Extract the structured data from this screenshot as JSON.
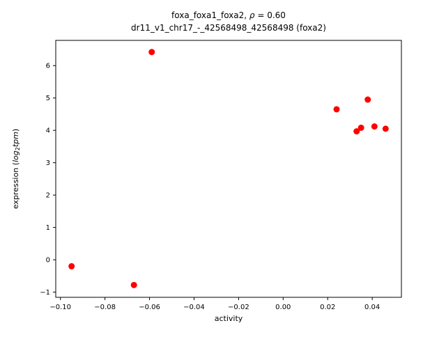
{
  "chart_data": {
    "type": "scatter",
    "title_line1": {
      "pre": "foxa_foxa1_foxa2, ",
      "rho": "ρ",
      "post": " = 0.60"
    },
    "title_line2": "dr11_v1_chr17_-_42568498_42568498 (foxa2)",
    "xlabel": "activity",
    "ylabel": {
      "prefix": "expression (",
      "log": "log",
      "sub": "2",
      "word": "tpm",
      "suffix": ")"
    },
    "marker_color": "#ff0000",
    "axis_color": "#000000",
    "xlim": [
      -0.1021,
      0.0531
    ],
    "ylim": [
      -1.16,
      6.78
    ],
    "x_ticks": [
      -0.1,
      -0.08,
      -0.06,
      -0.04,
      -0.02,
      0.0,
      0.02,
      0.04
    ],
    "x_tick_labels": [
      "−0.10",
      "−0.08",
      "−0.06",
      "−0.04",
      "−0.02",
      "0.00",
      "0.02",
      "0.04"
    ],
    "y_ticks": [
      -1,
      0,
      1,
      2,
      3,
      4,
      5,
      6
    ],
    "y_tick_labels": [
      "−1",
      "0",
      "1",
      "2",
      "3",
      "4",
      "5",
      "6"
    ],
    "points": [
      {
        "x": -0.095,
        "y": -0.2
      },
      {
        "x": -0.067,
        "y": -0.78
      },
      {
        "x": -0.059,
        "y": 6.42
      },
      {
        "x": 0.024,
        "y": 4.65
      },
      {
        "x": 0.033,
        "y": 3.97
      },
      {
        "x": 0.035,
        "y": 4.08
      },
      {
        "x": 0.038,
        "y": 4.95
      },
      {
        "x": 0.041,
        "y": 4.12
      },
      {
        "x": 0.046,
        "y": 4.05
      }
    ]
  }
}
